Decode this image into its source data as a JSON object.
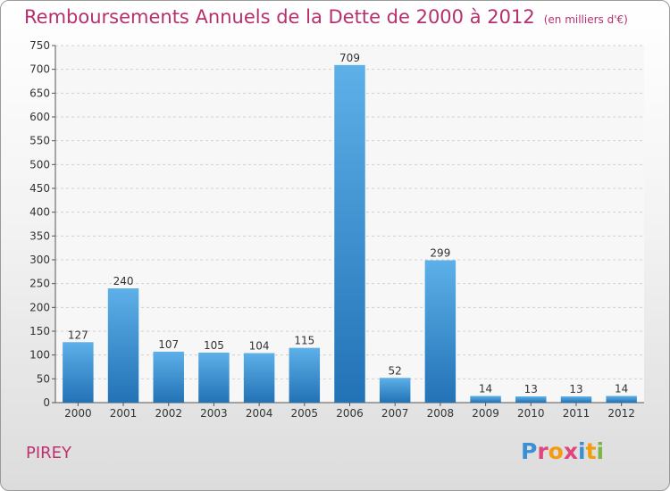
{
  "title": "Remboursements Annuels de la Dette de 2000 à 2012",
  "subtitle": "(en milliers d'€)",
  "commune": "PIREY",
  "logo_text": "Proxiti",
  "colors": {
    "title": "#b5306d",
    "bar_top": "#5db0e8",
    "bar_bottom": "#2272b6",
    "logo": [
      "#3a8fd6",
      "#e0457b",
      "#f39c12",
      "#e0457b",
      "#3a8fd6",
      "#f39c12",
      "#7ab648"
    ]
  },
  "chart_data": {
    "type": "bar",
    "categories": [
      "2000",
      "2001",
      "2002",
      "2003",
      "2004",
      "2005",
      "2006",
      "2007",
      "2008",
      "2009",
      "2010",
      "2011",
      "2012"
    ],
    "values": [
      127,
      240,
      107,
      105,
      104,
      115,
      709,
      52,
      299,
      14,
      13,
      13,
      14
    ],
    "ylim": [
      0,
      750
    ],
    "yticks": [
      0,
      50,
      100,
      150,
      200,
      250,
      300,
      350,
      400,
      450,
      500,
      550,
      600,
      650,
      700,
      750
    ],
    "grid": true,
    "data_labels": true
  }
}
